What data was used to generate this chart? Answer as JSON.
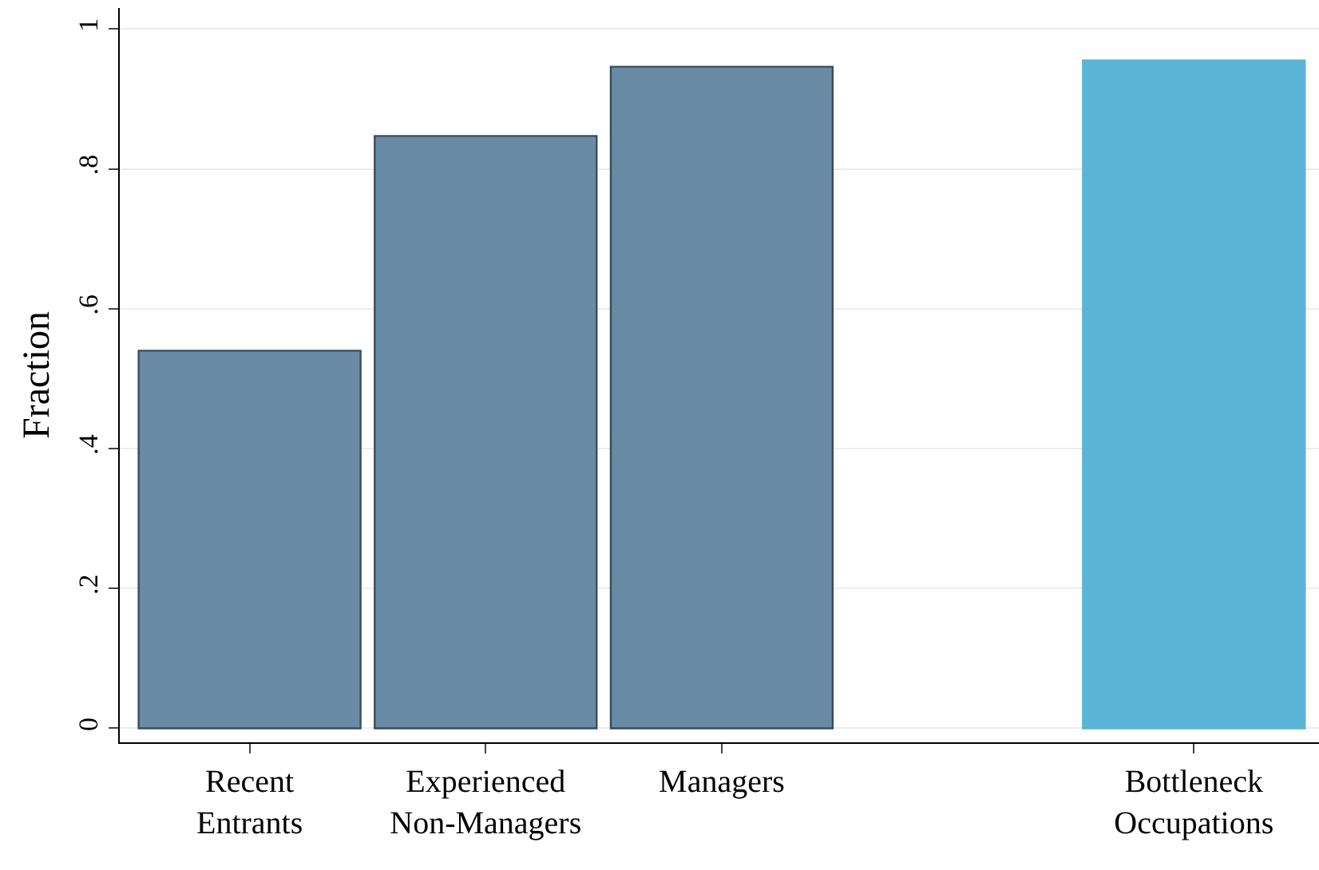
{
  "chart_data": {
    "type": "bar",
    "ylabel": "Fraction",
    "categories": [
      "Recent\nEntrants",
      "Experienced\nNon-Managers",
      "Managers",
      null,
      "Bottleneck\nOccupations"
    ],
    "values": [
      0.54,
      0.847,
      0.946,
      null,
      0.955
    ],
    "colors": [
      "#6a8ba5",
      "#6a8ba5",
      "#6a8ba5",
      "#6a8ba5",
      "#5ab4d6"
    ],
    "ylim": [
      -0.02,
      1.03
    ],
    "yticks": [
      {
        "value": 0,
        "label": "0"
      },
      {
        "value": 0.2,
        "label": ".2"
      },
      {
        "value": 0.4,
        "label": ".4"
      },
      {
        "value": 0.6,
        "label": ".6"
      },
      {
        "value": 0.8,
        "label": ".8"
      },
      {
        "value": 1,
        "label": "1"
      }
    ],
    "grid": "y"
  }
}
